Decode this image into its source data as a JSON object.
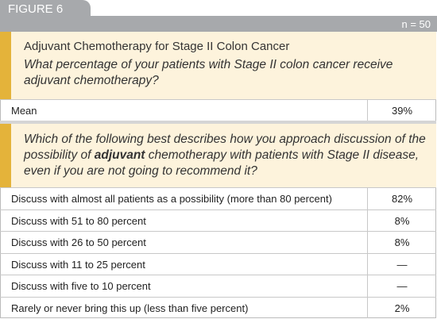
{
  "header": {
    "figure": "FIGURE 6",
    "n": "n = 50"
  },
  "section1": {
    "title": "Adjuvant Chemotherapy for Stage II Colon Cancer",
    "question": "What percentage of your patients with Stage II colon cancer receive adjuvant chemotherapy?",
    "rows": [
      [
        "Mean",
        "39%"
      ]
    ]
  },
  "section2": {
    "question": [
      "Which of the following best describes how you approach discussion of the possibility of ",
      "adjuvant",
      " chemotherapy with patients with Stage II disease, even if you are not going to recommend it?"
    ],
    "rows": [
      [
        "Discuss with almost all patients as a possibility (more than 80 percent)",
        "82%"
      ],
      [
        "Discuss with 51 to 80 percent",
        "8%"
      ],
      [
        "Discuss with 26 to 50 percent",
        "8%"
      ],
      [
        "Discuss with 11 to 25 percent",
        "—"
      ],
      [
        "Discuss with five to 10 percent",
        "—"
      ],
      [
        "Rarely or never bring this up (less than five percent)",
        "2%"
      ]
    ]
  }
}
